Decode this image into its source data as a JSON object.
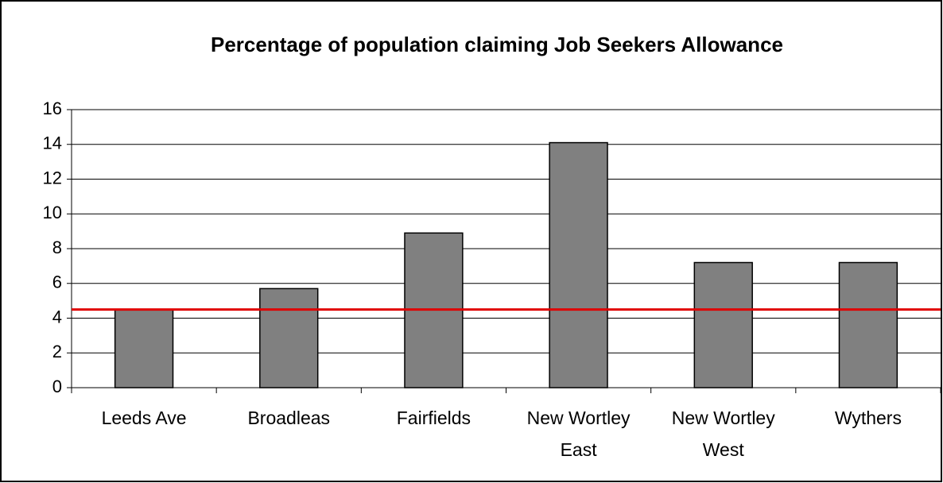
{
  "chart_data": {
    "type": "bar",
    "title": "Percentage of population claiming Job Seekers Allowance",
    "categories": [
      "Leeds Ave",
      "Broadleas",
      "Fairfields",
      "New Wortley East",
      "New Wortley West",
      "Wythers"
    ],
    "values": [
      4.5,
      5.7,
      8.9,
      14.1,
      7.2,
      7.2
    ],
    "color": "#808080",
    "ylim": [
      0,
      16
    ],
    "yticks": [
      0,
      2,
      4,
      6,
      8,
      10,
      12,
      14,
      16
    ],
    "grid": true,
    "reference_line": 4.5,
    "reference_color": "#e00000"
  }
}
